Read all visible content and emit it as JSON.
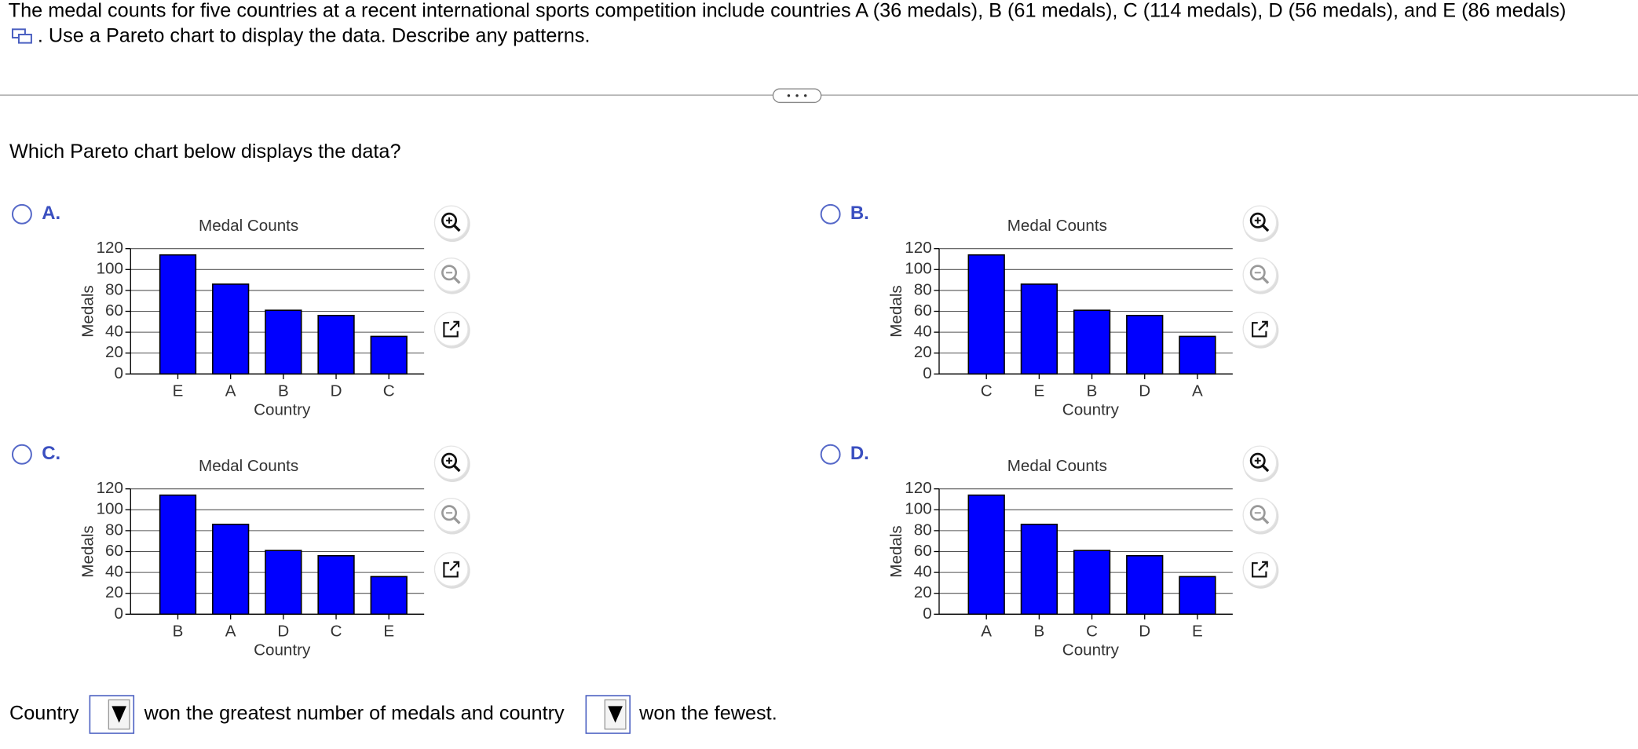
{
  "question": {
    "line1": "The medal counts for five countries at a recent international sports competition include countries A (36 medals), B (61 medals), C (114 medals), D (56 medals), and E (86 medals)",
    "line2": ". Use a Pareto chart to display the data. Describe any patterns."
  },
  "prompt": "Which Pareto chart below displays the data?",
  "options": [
    {
      "label": "A.",
      "chart": {
        "type": "bar",
        "title": "Medal Counts",
        "x_label": "Country",
        "y_label": "Medals",
        "categories": [
          "E",
          "A",
          "B",
          "D",
          "C"
        ],
        "values": [
          114,
          86,
          61,
          56,
          36
        ],
        "color": "#0000ff",
        "ylim": [
          0,
          120
        ],
        "yticks": [
          0,
          20,
          40,
          60,
          80,
          100,
          120
        ],
        "grid": true
      }
    },
    {
      "label": "B.",
      "chart": {
        "type": "bar",
        "title": "Medal Counts",
        "x_label": "Country",
        "y_label": "Medals",
        "categories": [
          "C",
          "E",
          "B",
          "D",
          "A"
        ],
        "values": [
          114,
          86,
          61,
          56,
          36
        ],
        "color": "#0000ff",
        "ylim": [
          0,
          120
        ],
        "yticks": [
          0,
          20,
          40,
          60,
          80,
          100,
          120
        ],
        "grid": true
      }
    },
    {
      "label": "C.",
      "chart": {
        "type": "bar",
        "title": "Medal Counts",
        "x_label": "Country",
        "y_label": "Medals",
        "categories": [
          "B",
          "A",
          "D",
          "C",
          "E"
        ],
        "values": [
          114,
          86,
          61,
          56,
          36
        ],
        "color": "#0000ff",
        "ylim": [
          0,
          120
        ],
        "yticks": [
          0,
          20,
          40,
          60,
          80,
          100,
          120
        ],
        "grid": true
      }
    },
    {
      "label": "D.",
      "chart": {
        "type": "bar",
        "title": "Medal Counts",
        "x_label": "Country",
        "y_label": "Medals",
        "categories": [
          "A",
          "B",
          "C",
          "D",
          "E"
        ],
        "values": [
          114,
          86,
          61,
          56,
          36
        ],
        "color": "#0000ff",
        "ylim": [
          0,
          120
        ],
        "yticks": [
          0,
          20,
          40,
          60,
          80,
          100,
          120
        ],
        "grid": true
      }
    }
  ],
  "answer": {
    "part1": "Country",
    "part2": "won the greatest number of medals and country",
    "part3": "won the fewest."
  }
}
